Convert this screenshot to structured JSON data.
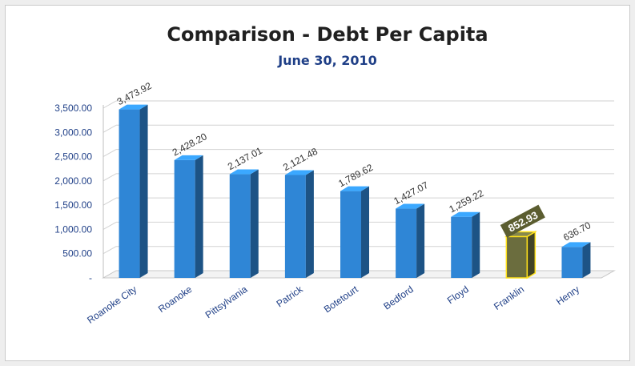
{
  "chart_data": {
    "type": "bar",
    "title": "Comparison - Debt Per Capita",
    "subtitle": "June 30, 2010",
    "xlabel": "",
    "ylabel": "",
    "categories": [
      "Roanoke City",
      "Roanoke",
      "Pittsylvania",
      "Patrick",
      "Botetourt",
      "Bedford",
      "Floyd",
      "Franklin",
      "Henry"
    ],
    "values": [
      3473.92,
      2428.2,
      2137.01,
      2121.48,
      1789.62,
      1427.07,
      1259.22,
      852.93,
      636.7
    ],
    "value_labels": [
      "3,473.92",
      "2,428.20",
      "2,137.01",
      "2,121.48",
      "1,789.62",
      "1,427.07",
      "1,259.22",
      "852.93",
      "636.70"
    ],
    "yticks": [
      "-",
      "500.00",
      "1,000.00",
      "1,500.00",
      "2,000.00",
      "2,500.00",
      "3,000.00",
      "3,500.00"
    ],
    "ytick_values": [
      0,
      500,
      1000,
      1500,
      2000,
      2500,
      3000,
      3500
    ],
    "ylim": [
      0,
      3500
    ],
    "grid": true,
    "legend": "none",
    "highlight_category": "Franklin",
    "colors": {
      "bar": "#2f86d6",
      "bar_highlight": "#6b6d3e",
      "highlight_outline": "#ffe11a",
      "label_box": "#5b5d30"
    }
  }
}
